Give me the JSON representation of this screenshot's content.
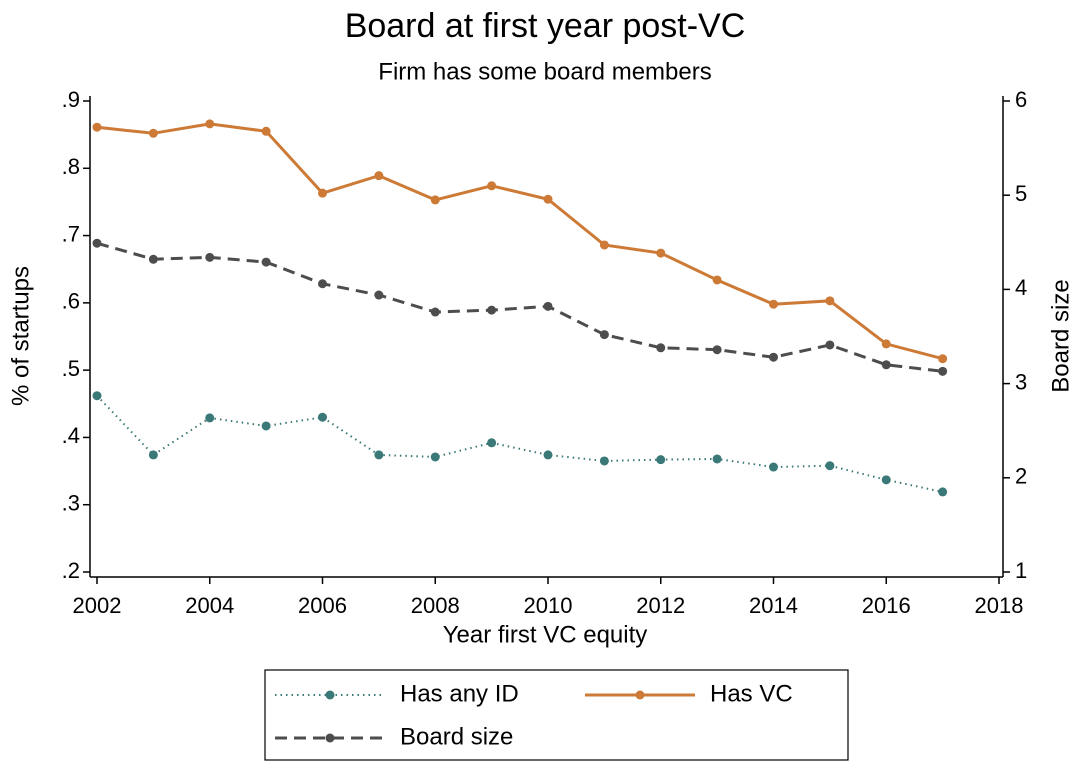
{
  "chart_data": {
    "type": "line",
    "title": "Board at first year post-VC",
    "subtitle": "Firm has some board members",
    "xlabel": "Year first VC equity",
    "ylabel": "% of startups",
    "y2label": "Board size",
    "x": [
      2002,
      2003,
      2004,
      2005,
      2006,
      2007,
      2008,
      2009,
      2010,
      2011,
      2012,
      2013,
      2014,
      2015,
      2016,
      2017
    ],
    "series": [
      {
        "name": "Has any ID",
        "color": "#3b7878",
        "line_style": "dotted",
        "values": [
          0.462,
          0.374,
          0.429,
          0.417,
          0.43,
          0.374,
          0.371,
          0.392,
          0.374,
          0.365,
          0.367,
          0.368,
          0.356,
          0.358,
          0.337,
          0.319
        ]
      },
      {
        "name": "Has VC",
        "color": "#cc7a36",
        "line_style": "solid",
        "values": [
          0.861,
          0.852,
          0.866,
          0.855,
          0.763,
          0.789,
          0.753,
          0.774,
          0.754,
          0.686,
          0.674,
          0.634,
          0.598,
          0.603,
          0.539,
          0.517
        ]
      },
      {
        "name": "Board size",
        "color": "#4d4d4d",
        "line_style": "dashed",
        "axis": "y2",
        "values": [
          4.49,
          4.32,
          4.34,
          4.29,
          4.06,
          3.94,
          3.76,
          3.78,
          3.82,
          3.52,
          3.38,
          3.36,
          3.28,
          3.41,
          3.2,
          3.13
        ]
      }
    ],
    "xlim": [
      2002,
      2018
    ],
    "xticks": [
      2002,
      2004,
      2006,
      2008,
      2010,
      2012,
      2014,
      2016,
      2018
    ],
    "ylim": [
      0.2,
      0.9
    ],
    "yticks": [
      {
        "value": 0.2,
        "label": ".2"
      },
      {
        "value": 0.3,
        "label": ".3"
      },
      {
        "value": 0.4,
        "label": ".4"
      },
      {
        "value": 0.5,
        "label": ".5"
      },
      {
        "value": 0.6,
        "label": ".6"
      },
      {
        "value": 0.7,
        "label": ".7"
      },
      {
        "value": 0.8,
        "label": ".8"
      },
      {
        "value": 0.9,
        "label": ".9"
      }
    ],
    "y2lim": [
      1,
      6
    ],
    "y2ticks": [
      1,
      2,
      3,
      4,
      5,
      6
    ],
    "legend": "bottom"
  }
}
